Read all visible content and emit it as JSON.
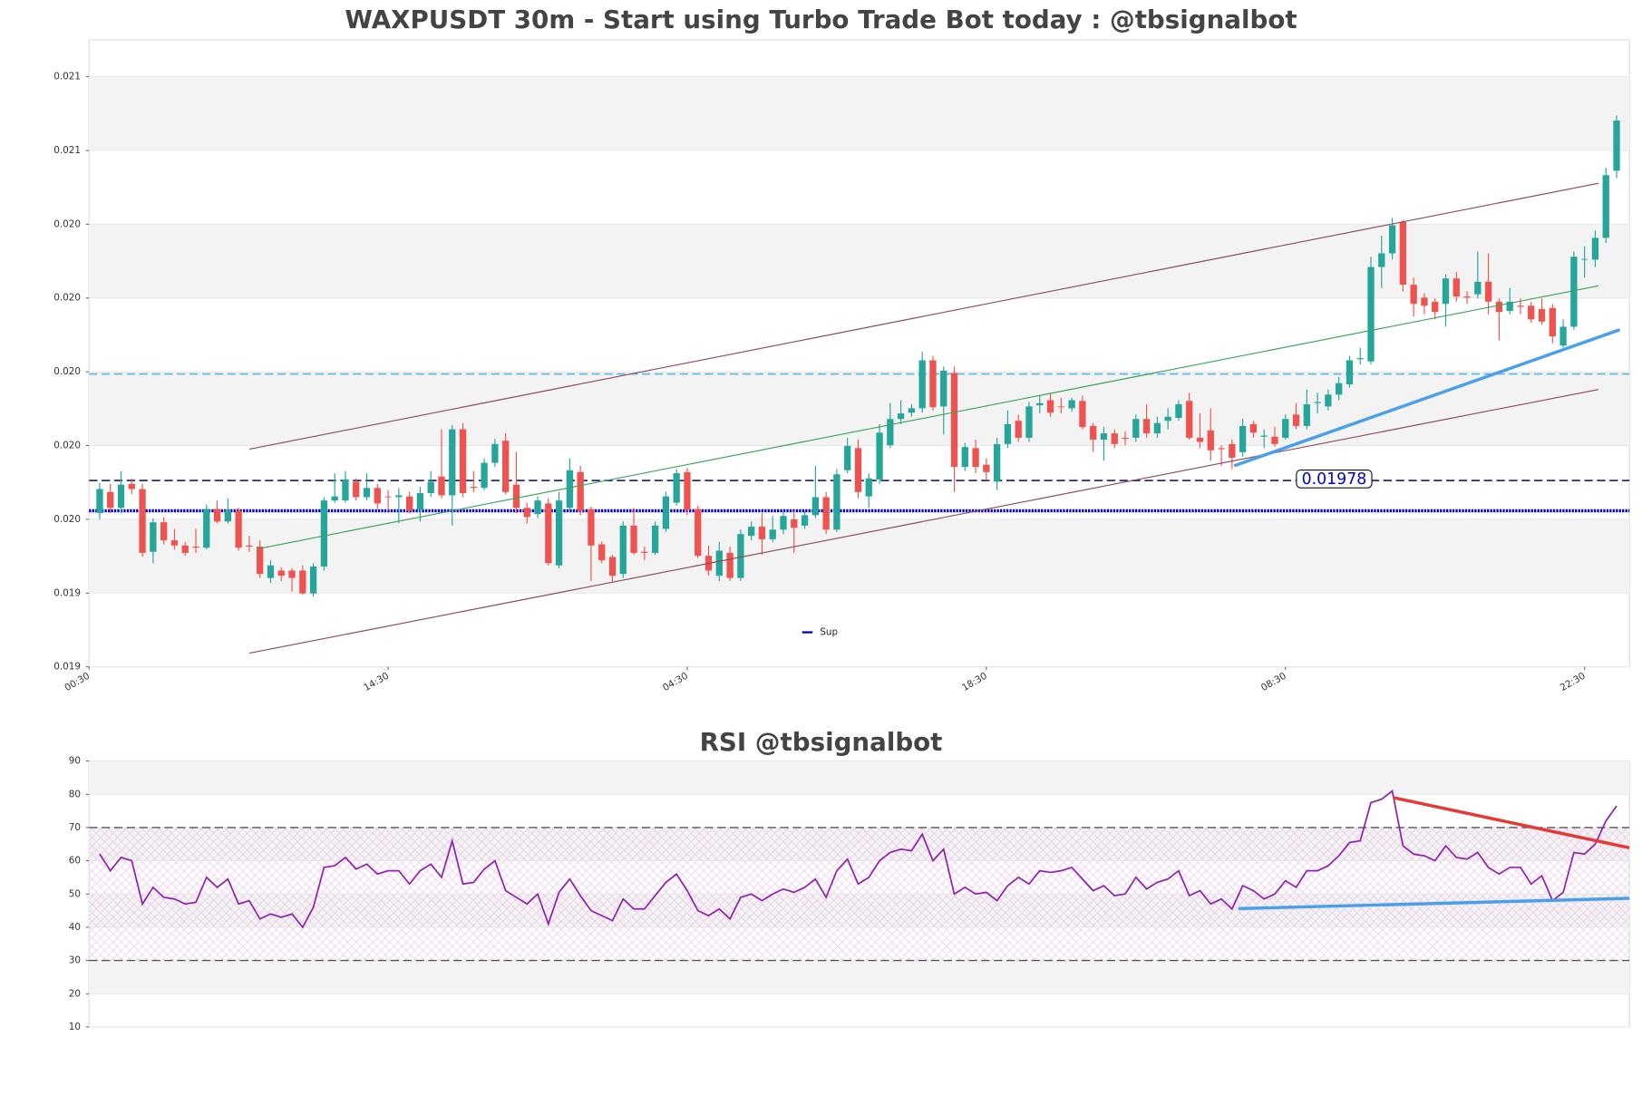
{
  "chart_data": [
    {
      "type": "candlestick",
      "title": "WAXPUSDT 30m - Start using Turbo Trade Bot today : @tbsignalbot",
      "up_color": "#26a69a",
      "down_color": "#ef5350",
      "ylim": [
        0.0192,
        0.0209
      ],
      "yticks": [
        {
          "value": 0.0192,
          "label": "0.019"
        },
        {
          "value": 0.0194,
          "label": "0.019"
        },
        {
          "value": 0.0196,
          "label": "0.020"
        },
        {
          "value": 0.0198,
          "label": "0.020"
        },
        {
          "value": 0.02,
          "label": "0.020"
        },
        {
          "value": 0.0202,
          "label": "0.020"
        },
        {
          "value": 0.0204,
          "label": "0.020"
        },
        {
          "value": 0.0206,
          "label": "0.021"
        },
        {
          "value": 0.0208,
          "label": "0.021"
        }
      ],
      "xlim": [
        -1,
        143.2
      ],
      "xticks": [
        {
          "value": -1,
          "label": "00:30"
        },
        {
          "value": 27,
          "label": "14:30"
        },
        {
          "value": 55,
          "label": "04:30"
        },
        {
          "value": 83,
          "label": "18:30"
        },
        {
          "value": 111,
          "label": "08:30"
        },
        {
          "value": 139,
          "label": "22:30"
        }
      ],
      "bands": true,
      "candles": [
        [
          0.019617,
          0.019699,
          0.0196,
          0.019682
        ],
        [
          0.019674,
          0.019696,
          0.019617,
          0.019631
        ],
        [
          0.019631,
          0.019731,
          0.019617,
          0.019694
        ],
        [
          0.019696,
          0.019711,
          0.019668,
          0.019682
        ],
        [
          0.019682,
          0.019696,
          0.019498,
          0.019509
        ],
        [
          0.019512,
          0.019603,
          0.019481,
          0.019592
        ],
        [
          0.019592,
          0.019606,
          0.019532,
          0.019543
        ],
        [
          0.019543,
          0.019574,
          0.019518,
          0.019529
        ],
        [
          0.019529,
          0.019538,
          0.019501,
          0.019509
        ],
        [
          0.019526,
          0.019574,
          0.019509,
          0.019523
        ],
        [
          0.019523,
          0.01964,
          0.019518,
          0.019628
        ],
        [
          0.019628,
          0.019651,
          0.019589,
          0.019594
        ],
        [
          0.019594,
          0.019657,
          0.019589,
          0.019623
        ],
        [
          0.019623,
          0.019631,
          0.019515,
          0.019523
        ],
        [
          0.019529,
          0.019555,
          0.019512,
          0.019526
        ],
        [
          0.019526,
          0.019543,
          0.019441,
          0.019452
        ],
        [
          0.019441,
          0.019489,
          0.019427,
          0.019475
        ],
        [
          0.019461,
          0.01947,
          0.019433,
          0.019447
        ],
        [
          0.019461,
          0.019467,
          0.019404,
          0.019441
        ],
        [
          0.019461,
          0.019475,
          0.019396,
          0.019399
        ],
        [
          0.019399,
          0.019481,
          0.01939,
          0.019472
        ],
        [
          0.019472,
          0.01966,
          0.019461,
          0.019651
        ],
        [
          0.019651,
          0.019725,
          0.019645,
          0.019662
        ],
        [
          0.019651,
          0.019731,
          0.019645,
          0.019708
        ],
        [
          0.019702,
          0.019711,
          0.019651,
          0.01966
        ],
        [
          0.01966,
          0.019725,
          0.019651,
          0.019685
        ],
        [
          0.019685,
          0.019696,
          0.019628,
          0.019643
        ],
        [
          0.019662,
          0.019679,
          0.019623,
          0.01966
        ],
        [
          0.01966,
          0.019685,
          0.019589,
          0.019665
        ],
        [
          0.019662,
          0.019674,
          0.019617,
          0.019623
        ],
        [
          0.019626,
          0.019688,
          0.019594,
          0.019671
        ],
        [
          0.019671,
          0.019731,
          0.01966,
          0.019702
        ],
        [
          0.019716,
          0.019844,
          0.019657,
          0.019665
        ],
        [
          0.019665,
          0.019855,
          0.019583,
          0.019844
        ],
        [
          0.019844,
          0.019861,
          0.01966,
          0.019671
        ],
        [
          0.019688,
          0.019731,
          0.019674,
          0.019685
        ],
        [
          0.019685,
          0.019765,
          0.019679,
          0.019753
        ],
        [
          0.019753,
          0.019818,
          0.019742,
          0.019804
        ],
        [
          0.019813,
          0.019833,
          0.019668,
          0.019674
        ],
        [
          0.019694,
          0.019782,
          0.019617,
          0.019631
        ],
        [
          0.019631,
          0.019645,
          0.019589,
          0.019606
        ],
        [
          0.019614,
          0.019662,
          0.019603,
          0.019651
        ],
        [
          0.019643,
          0.019657,
          0.019475,
          0.019481
        ],
        [
          0.019475,
          0.019674,
          0.019467,
          0.019651
        ],
        [
          0.019631,
          0.019765,
          0.019623,
          0.019733
        ],
        [
          0.019728,
          0.019745,
          0.019611,
          0.019623
        ],
        [
          0.019628,
          0.019634,
          0.019433,
          0.019529
        ],
        [
          0.019532,
          0.01954,
          0.019481,
          0.019489
        ],
        [
          0.019498,
          0.019504,
          0.01943,
          0.019447
        ],
        [
          0.019452,
          0.019594,
          0.019441,
          0.019583
        ],
        [
          0.019583,
          0.019631,
          0.019504,
          0.019509
        ],
        [
          0.019512,
          0.019526,
          0.019489,
          0.019509
        ],
        [
          0.019509,
          0.019594,
          0.019504,
          0.019583
        ],
        [
          0.019574,
          0.019674,
          0.019566,
          0.019662
        ],
        [
          0.019645,
          0.019736,
          0.019637,
          0.019725
        ],
        [
          0.019728,
          0.019739,
          0.019611,
          0.019626
        ],
        [
          0.019628,
          0.019637,
          0.019495,
          0.019501
        ],
        [
          0.019501,
          0.019529,
          0.019447,
          0.019461
        ],
        [
          0.019447,
          0.019538,
          0.019433,
          0.019515
        ],
        [
          0.019509,
          0.019526,
          0.019433,
          0.019441
        ],
        [
          0.019441,
          0.019572,
          0.019433,
          0.01956
        ],
        [
          0.019555,
          0.019594,
          0.019543,
          0.01958
        ],
        [
          0.01958,
          0.019617,
          0.019504,
          0.019546
        ],
        [
          0.019546,
          0.019609,
          0.019538,
          0.019572
        ],
        [
          0.019572,
          0.019623,
          0.01956,
          0.019609
        ],
        [
          0.0196,
          0.019623,
          0.019509,
          0.019577
        ],
        [
          0.019583,
          0.019623,
          0.019574,
          0.019611
        ],
        [
          0.019611,
          0.019745,
          0.019603,
          0.01966
        ],
        [
          0.01966,
          0.019674,
          0.01956,
          0.019572
        ],
        [
          0.019572,
          0.019736,
          0.019566,
          0.019722
        ],
        [
          0.019733,
          0.019821,
          0.019725,
          0.019799
        ],
        [
          0.019793,
          0.019816,
          0.019657,
          0.019674
        ],
        [
          0.019662,
          0.019725,
          0.019631,
          0.019711
        ],
        [
          0.019708,
          0.019858,
          0.019696,
          0.019835
        ],
        [
          0.019801,
          0.019915,
          0.019793,
          0.019872
        ],
        [
          0.019872,
          0.019923,
          0.019858,
          0.019887
        ],
        [
          0.019889,
          0.019912,
          0.019878,
          0.019901
        ],
        [
          0.019901,
          0.020054,
          0.019889,
          0.020031
        ],
        [
          0.020031,
          0.020043,
          0.019895,
          0.019904
        ],
        [
          0.019906,
          0.020014,
          0.01983,
          0.020003
        ],
        [
          0.019997,
          0.020014,
          0.019674,
          0.019742
        ],
        [
          0.019742,
          0.019807,
          0.019731,
          0.019796
        ],
        [
          0.019793,
          0.019816,
          0.019725,
          0.019742
        ],
        [
          0.019748,
          0.019765,
          0.019708,
          0.019728
        ],
        [
          0.019702,
          0.019821,
          0.019679,
          0.019804
        ],
        [
          0.019804,
          0.019895,
          0.019793,
          0.019858
        ],
        [
          0.019867,
          0.019884,
          0.01981,
          0.019821
        ],
        [
          0.019821,
          0.019918,
          0.01981,
          0.019906
        ],
        [
          0.019909,
          0.019935,
          0.019887,
          0.019915
        ],
        [
          0.019923,
          0.01994,
          0.019878,
          0.019889
        ],
        [
          0.019906,
          0.019929,
          0.019887,
          0.019904
        ],
        [
          0.019901,
          0.019929,
          0.019892,
          0.019923
        ],
        [
          0.019921,
          0.019935,
          0.019844,
          0.01985
        ],
        [
          0.019853,
          0.019861,
          0.019782,
          0.019816
        ],
        [
          0.019816,
          0.01985,
          0.019759,
          0.019833
        ],
        [
          0.019833,
          0.019844,
          0.019793,
          0.019804
        ],
        [
          0.019821,
          0.019838,
          0.019801,
          0.019818
        ],
        [
          0.019821,
          0.019884,
          0.01981,
          0.019872
        ],
        [
          0.019872,
          0.019912,
          0.019821,
          0.019833
        ],
        [
          0.019833,
          0.019878,
          0.019821,
          0.019861
        ],
        [
          0.019867,
          0.019901,
          0.019844,
          0.019878
        ],
        [
          0.019875,
          0.019923,
          0.019867,
          0.019912
        ],
        [
          0.019921,
          0.019943,
          0.019816,
          0.019821
        ],
        [
          0.019821,
          0.019887,
          0.019793,
          0.01981
        ],
        [
          0.019841,
          0.019901,
          0.019759,
          0.019787
        ],
        [
          0.019793,
          0.019801,
          0.019745,
          0.01979
        ],
        [
          0.019804,
          0.019816,
          0.019736,
          0.019767
        ],
        [
          0.019782,
          0.019872,
          0.01977,
          0.019853
        ],
        [
          0.019858,
          0.019867,
          0.019821,
          0.019835
        ],
        [
          0.019824,
          0.019844,
          0.019793,
          0.019827
        ],
        [
          0.019824,
          0.01985,
          0.019796,
          0.019804
        ],
        [
          0.019821,
          0.019884,
          0.019816,
          0.019872
        ],
        [
          0.019884,
          0.019915,
          0.019844,
          0.019853
        ],
        [
          0.019853,
          0.019952,
          0.019844,
          0.019912
        ],
        [
          0.019915,
          0.019943,
          0.019887,
          0.019918
        ],
        [
          0.019906,
          0.019952,
          0.019895,
          0.019938
        ],
        [
          0.019938,
          0.019986,
          0.019923,
          0.019969
        ],
        [
          0.019966,
          0.020043,
          0.019957,
          0.020031
        ],
        [
          0.020034,
          0.020065,
          0.02002,
          0.020037
        ],
        [
          0.020028,
          0.020312,
          0.02002,
          0.020284
        ],
        [
          0.020284,
          0.020369,
          0.020227,
          0.020321
        ],
        [
          0.020321,
          0.020417,
          0.020304,
          0.020397
        ],
        [
          0.020406,
          0.020411,
          0.020218,
          0.020236
        ],
        [
          0.020236,
          0.020255,
          0.02015,
          0.020184
        ],
        [
          0.020201,
          0.020213,
          0.020156,
          0.020179
        ],
        [
          0.02019,
          0.020199,
          0.020142,
          0.020162
        ],
        [
          0.020184,
          0.020264,
          0.020122,
          0.020253
        ],
        [
          0.020253,
          0.02027,
          0.02019,
          0.020204
        ],
        [
          0.020204,
          0.020218,
          0.020184,
          0.020201
        ],
        [
          0.02021,
          0.020326,
          0.020199,
          0.020244
        ],
        [
          0.020244,
          0.020321,
          0.020156,
          0.02019
        ],
        [
          0.02019,
          0.020199,
          0.020085,
          0.020162
        ],
        [
          0.020165,
          0.020227,
          0.020156,
          0.02019
        ],
        [
          0.020179,
          0.020199,
          0.020156,
          0.020176
        ],
        [
          0.020179,
          0.02019,
          0.020133,
          0.020142
        ],
        [
          0.02017,
          0.020199,
          0.020128,
          0.020136
        ],
        [
          0.020173,
          0.020184,
          0.020077,
          0.020096
        ],
        [
          0.020071,
          0.020142,
          0.020065,
          0.020122
        ],
        [
          0.020122,
          0.020326,
          0.020114,
          0.020312
        ],
        [
          0.020304,
          0.02034,
          0.020255,
          0.020306
        ],
        [
          0.020304,
          0.020383,
          0.020284,
          0.020363
        ],
        [
          0.020363,
          0.020553,
          0.020349,
          0.020533
        ],
        [
          0.020545,
          0.020695,
          0.020525,
          0.020681
        ]
      ],
      "lines": [
        {
          "color": "#8b4a5a",
          "width": 1,
          "x": [
            14,
            140.3
          ],
          "y": [
            0.01979,
            0.020511
          ]
        },
        {
          "color": "#8b4a5a",
          "width": 1,
          "x": [
            14,
            140.3
          ],
          "y": [
            0.019237,
            0.019952
          ]
        },
        {
          "color": "#3aa35a",
          "width": 1,
          "x": [
            15,
            140.3
          ],
          "y": [
            0.019521,
            0.020233
          ]
        },
        {
          "color": "#4a9fea",
          "width": 3,
          "x": [
            106.2,
            142.3
          ],
          "y": [
            0.019745,
            0.020114
          ]
        }
      ],
      "hlines": [
        {
          "value": 0.019994,
          "color": "#56b4e9",
          "dash": "8 4",
          "width": 1.5
        },
        {
          "value": 0.019705,
          "color": "#2a2a7a",
          "dash": "8 4",
          "width": 1.5
        },
        {
          "name": "Sup",
          "value": 0.019623,
          "color": "#0000cc",
          "dash": "2 1",
          "width": 3
        }
      ],
      "annotation": "0.01978"
    },
    {
      "type": "line",
      "title": "RSI @tbsignalbot",
      "color": "#8e24aa",
      "ylim": [
        10,
        90
      ],
      "yticks": [
        10,
        20,
        30,
        40,
        50,
        60,
        70,
        80,
        90
      ],
      "xlim": [
        -1,
        143.2
      ],
      "bands": true,
      "hlines": [
        {
          "value": 70,
          "color": "#555",
          "dash": "8 4",
          "width": 1.2
        },
        {
          "value": 30,
          "color": "#555",
          "dash": "8 4",
          "width": 1.2
        }
      ],
      "values": [
        62,
        57,
        61,
        60,
        47,
        52,
        49,
        48.5,
        47,
        47.5,
        55,
        52,
        54.5,
        47,
        48,
        42.5,
        44,
        43,
        44,
        40,
        46,
        58,
        58.5,
        61,
        57.5,
        59,
        56,
        57,
        57,
        53,
        57,
        59,
        55,
        66,
        53,
        53.5,
        57.5,
        60,
        51,
        49,
        47,
        50,
        41,
        50.5,
        54.5,
        49.5,
        45,
        43.5,
        42,
        48.5,
        45.5,
        45.5,
        49.5,
        53.5,
        56,
        51,
        45,
        43.5,
        45.5,
        42.5,
        49,
        50,
        48,
        50,
        51.5,
        50.5,
        52,
        54.5,
        49,
        57,
        60.5,
        53,
        55,
        60,
        62.5,
        63.5,
        63,
        68,
        60,
        63.5,
        50,
        52,
        50,
        50.5,
        48,
        52.5,
        55,
        53,
        57,
        56.5,
        57,
        58,
        54.5,
        51,
        52.5,
        49.5,
        50,
        55,
        51.5,
        53.5,
        54.5,
        57,
        49.5,
        51,
        47,
        48.5,
        45.5,
        52.5,
        51,
        48.5,
        50,
        54,
        52,
        57,
        57,
        58.5,
        61.5,
        65.5,
        66,
        77.5,
        78.5,
        81,
        64.5,
        62,
        61.5,
        60,
        64.5,
        61,
        60.5,
        62.5,
        58,
        56,
        58,
        58,
        53,
        55.5,
        48,
        50.5,
        62.5,
        62,
        65,
        72,
        76.5
      ],
      "lines": [
        {
          "color": "#e53935",
          "width": 3,
          "x": [
            121.1,
            143.2
          ],
          "y": [
            79,
            63.9
          ]
        },
        {
          "color": "#4a9fea",
          "width": 3,
          "x": [
            106.6,
            143.2
          ],
          "y": [
            45.6,
            48.7
          ]
        }
      ]
    }
  ]
}
